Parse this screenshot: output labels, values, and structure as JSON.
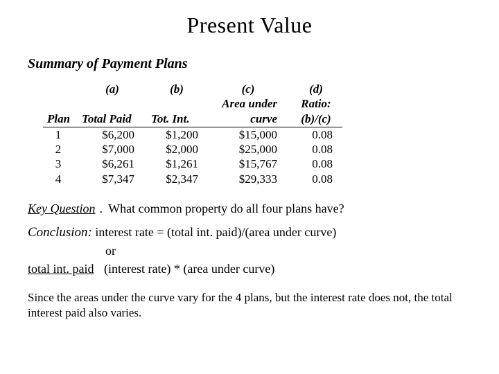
{
  "title": "Present Value",
  "subtitle": "Summary of Payment Plans",
  "table": {
    "header_letters": {
      "a": "(a)",
      "b": "(b)",
      "c": "(c)",
      "d": "(d)"
    },
    "header_labels": {
      "plan": "Plan",
      "total_paid": "Total Paid",
      "tot_int": "Tot. Int.",
      "area_under": "Area under",
      "curve": "curve",
      "ratio": "Ratio:",
      "ratio_def": "(b)/(c)"
    },
    "rows": [
      {
        "plan": "1",
        "total_paid": "$6,200",
        "tot_int": "$1,200",
        "area": "$15,000",
        "ratio": "0.08"
      },
      {
        "plan": "2",
        "total_paid": "$7,000",
        "tot_int": "$2,000",
        "area": "$25,000",
        "ratio": "0.08"
      },
      {
        "plan": "3",
        "total_paid": "$6,261",
        "tot_int": "$1,261",
        "area": "$15,767",
        "ratio": "0.08"
      },
      {
        "plan": "4",
        "total_paid": "$7,347",
        "tot_int": "$2,347",
        "area": "$29,333",
        "ratio": "0.08"
      }
    ]
  },
  "key_question": {
    "label": "Key Question",
    "sep": ".",
    "text": "What common property do all four plans have?"
  },
  "conclusion": {
    "label": "Conclusion:",
    "line1": "interest rate = (total int. paid)/(area under curve)",
    "or": "or",
    "tip_label": "total int. paid",
    "tip_rest": "(interest rate) * (area under curve)"
  },
  "closing": "Since the areas under the curve vary for the 4 plans, but the interest rate does not, the total interest paid also varies.",
  "colors": {
    "text": "#000000",
    "background": "#ffffff",
    "rule": "#000000"
  },
  "fonts": {
    "family": "Times New Roman",
    "title_size_pt": 24,
    "subtitle_size_pt": 15,
    "body_size_pt": 13
  }
}
